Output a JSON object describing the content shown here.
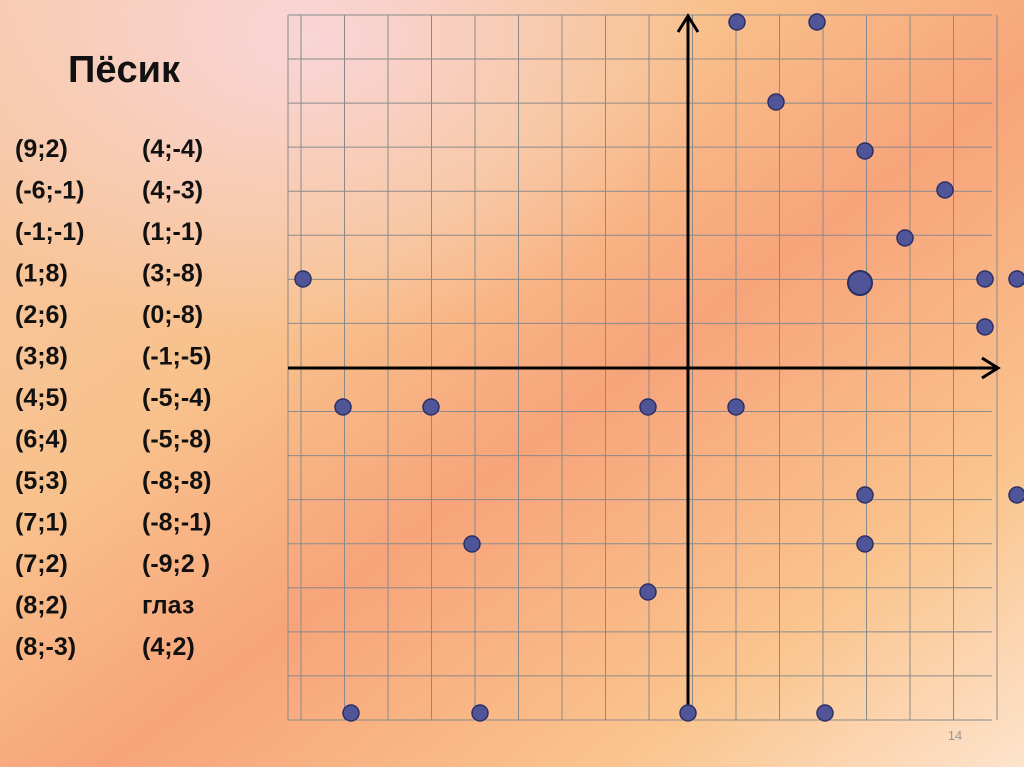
{
  "title": "Пёсик",
  "column_1": [
    "(9;2)",
    "(-6;-1)",
    "(-1;-1)",
    "(1;8)",
    "(2;6)",
    "(3;8)",
    "(4;5)",
    "(6;4)",
    "(5;3)",
    "(7;1)",
    "(7;2)",
    "(8;2)",
    "(8;-3)"
  ],
  "column_2": [
    "(4;-4)",
    "(4;-3)",
    "(1;-1)",
    "(3;-8)",
    "(0;-8)",
    "(-1;-5)",
    "(-5;-4)",
    "(-5;-8)",
    "(-8;-8)",
    "(-8;-1)",
    "(-9;2 )",
    "глаз",
    "(4;2)"
  ],
  "page_number": "14"
}
